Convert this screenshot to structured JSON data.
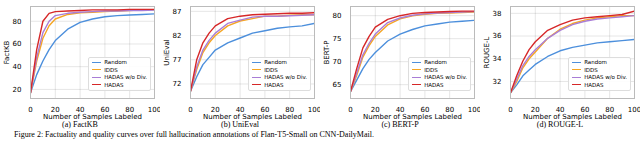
{
  "chart_data": [
    {
      "type": "line",
      "title": "(a) FactKB",
      "x_label": "Number of Samples Labeled",
      "y_label": "FactKB",
      "x": [
        0,
        5,
        10,
        15,
        20,
        30,
        40,
        50,
        60,
        70,
        80,
        90,
        100
      ],
      "xlim": [
        0,
        100
      ],
      "xticks": [
        0,
        20,
        40,
        60,
        80,
        100
      ],
      "ylim": [
        12,
        93
      ],
      "yticks": [
        20,
        40,
        60,
        80
      ],
      "grid": true,
      "legend": "lower right",
      "series": [
        {
          "name": "Random",
          "color": "#4c8fdc",
          "values": [
            17,
            33,
            45,
            55,
            63,
            73,
            79,
            82,
            84,
            85,
            85.5,
            86,
            86.5
          ]
        },
        {
          "name": "IDDS",
          "color": "#f5a623",
          "values": [
            17,
            45,
            65,
            76,
            82,
            86,
            87.5,
            88,
            88.5,
            89,
            89.5,
            90,
            90
          ]
        },
        {
          "name": "HADAS w/o Div.",
          "color": "#a97dd6",
          "values": [
            17,
            48,
            70,
            80,
            85,
            87,
            88,
            88.5,
            89,
            89,
            89.5,
            89.5,
            90
          ]
        },
        {
          "name": "HADAS",
          "color": "#d62728",
          "values": [
            17,
            55,
            80,
            87,
            88.5,
            89,
            89.5,
            90,
            90,
            90,
            90.5,
            90.5,
            90.5
          ]
        }
      ]
    },
    {
      "type": "line",
      "title": "(b) UniEval",
      "x_label": "Number of Samples Labeled",
      "y_label": "UniEval",
      "x": [
        0,
        5,
        10,
        15,
        20,
        30,
        40,
        50,
        60,
        70,
        80,
        90,
        100
      ],
      "xlim": [
        0,
        100
      ],
      "xticks": [
        0,
        20,
        40,
        60,
        80,
        100
      ],
      "ylim": [
        69,
        88
      ],
      "yticks": [
        72,
        77,
        82,
        87
      ],
      "grid": true,
      "legend": "lower right",
      "series": [
        {
          "name": "Random",
          "color": "#4c8fdc",
          "values": [
            70.5,
            73.5,
            76,
            77.5,
            79,
            80.5,
            81.5,
            82.5,
            83,
            83.5,
            83.8,
            84,
            84.5
          ]
        },
        {
          "name": "IDDS",
          "color": "#f5a623",
          "values": [
            70.5,
            75,
            78.5,
            80.5,
            82,
            84,
            85,
            85.5,
            86,
            86,
            86.2,
            86.3,
            86.3
          ]
        },
        {
          "name": "HADAS w/o Div.",
          "color": "#a97dd6",
          "values": [
            70.5,
            75.5,
            79,
            81,
            82.5,
            84.5,
            85.2,
            85.8,
            86,
            86,
            86.1,
            86.2,
            86.3
          ]
        },
        {
          "name": "HADAS",
          "color": "#d62728",
          "values": [
            70.5,
            77,
            80.5,
            82.5,
            84,
            85.5,
            86,
            86.3,
            86.4,
            86.5,
            86.6,
            86.6,
            86.7
          ]
        }
      ]
    },
    {
      "type": "line",
      "title": "(c) BERT-P",
      "x_label": "Number of Samples Labeled",
      "y_label": "BERT-P",
      "x": [
        0,
        5,
        10,
        15,
        20,
        30,
        40,
        50,
        60,
        70,
        80,
        90,
        100
      ],
      "xlim": [
        0,
        100
      ],
      "xticks": [
        0,
        20,
        40,
        60,
        80,
        100
      ],
      "ylim": [
        62,
        82
      ],
      "yticks": [
        65,
        70,
        75,
        80
      ],
      "grid": true,
      "legend": "lower right",
      "series": [
        {
          "name": "Random",
          "color": "#4c8fdc",
          "values": [
            63.5,
            66,
            68.5,
            70.5,
            72,
            74.5,
            76,
            77,
            77.8,
            78.2,
            78.6,
            78.8,
            79
          ]
        },
        {
          "name": "IDDS",
          "color": "#f5a623",
          "values": [
            63.5,
            67,
            71,
            73.5,
            75.5,
            78,
            79.3,
            80,
            80.3,
            80.5,
            80.6,
            80.7,
            80.8
          ]
        },
        {
          "name": "HADAS w/o Div.",
          "color": "#a97dd6",
          "values": [
            63.5,
            67.5,
            71.5,
            74,
            76,
            78.5,
            79.5,
            80.1,
            80.4,
            80.6,
            80.7,
            80.8,
            80.9
          ]
        },
        {
          "name": "HADAS",
          "color": "#d62728",
          "values": [
            63.5,
            68.5,
            73,
            75.5,
            77.5,
            79.2,
            80,
            80.5,
            80.7,
            80.8,
            80.9,
            81,
            81
          ]
        }
      ]
    },
    {
      "type": "line",
      "title": "(d) ROUGE-L",
      "x_label": "Number of Samples Labeled",
      "y_label": "ROUGE-L",
      "x": [
        0,
        5,
        10,
        15,
        20,
        30,
        40,
        50,
        60,
        70,
        80,
        90,
        100
      ],
      "xlim": [
        0,
        100
      ],
      "xticks": [
        0,
        20,
        40,
        60,
        80,
        100
      ],
      "ylim": [
        30.5,
        38.6
      ],
      "yticks": [
        32,
        34,
        36,
        38
      ],
      "grid": true,
      "legend": "lower right",
      "series": [
        {
          "name": "Random",
          "color": "#4c8fdc",
          "values": [
            31,
            31.7,
            32.5,
            33,
            33.5,
            34.2,
            34.7,
            35,
            35.2,
            35.4,
            35.5,
            35.6,
            35.7
          ]
        },
        {
          "name": "IDDS",
          "color": "#f5a623",
          "values": [
            31,
            32,
            33.2,
            34,
            34.6,
            35.8,
            36.6,
            37.1,
            37.4,
            37.6,
            37.7,
            37.8,
            37.8
          ]
        },
        {
          "name": "HADAS w/o Div.",
          "color": "#a97dd6",
          "values": [
            31,
            32.2,
            33.4,
            34.2,
            34.8,
            35.8,
            36.5,
            37,
            37.3,
            37.5,
            37.6,
            37.7,
            37.8
          ]
        },
        {
          "name": "HADAS",
          "color": "#d62728",
          "values": [
            31,
            32.5,
            33.8,
            34.8,
            35.5,
            36.5,
            37,
            37.4,
            37.6,
            37.7,
            37.8,
            37.9,
            38.2
          ]
        }
      ]
    }
  ],
  "caption": "Figure 2: Factuality and quality curves over full hallucination annotations of Flan-T5-Small on CNN-DailyMail."
}
